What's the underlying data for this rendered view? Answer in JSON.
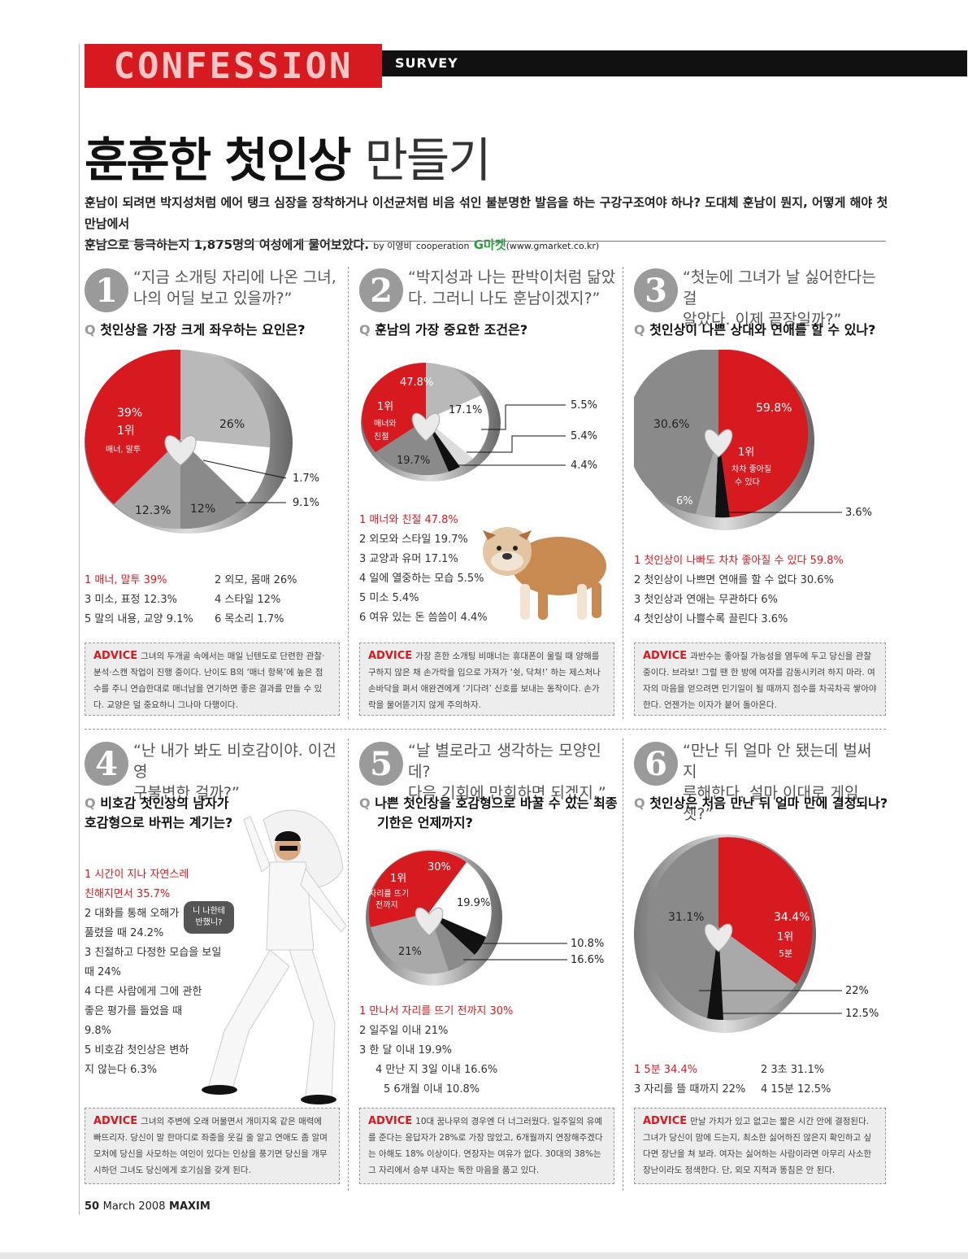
{
  "header": {
    "logo": "CONFESSION",
    "section": "SURVEY"
  },
  "title": {
    "bold": "훈훈한 첫인상",
    "light": "만들기"
  },
  "intro": {
    "line1": "훈남이 되려면 박지성처럼 에어 탱크 심장을 장착하거나 이선균처럼 비음 섞인 불분명한 발음을 하는 구강구조여야 하나? 도대체 훈남이 뭔지, 어떻게 해야 첫 만남에서",
    "line2": "훈남으로 등극하는지 1,875명의 여성에게 물어보았다.",
    "by": "by 이영비",
    "coop": "cooperation",
    "gmarket": "G마켓",
    "url": "(www.gmarket.co.kr)"
  },
  "sections": [
    {
      "num": "1",
      "quote1": "“지금 소개팅 자리에 나온 그녀,",
      "quote2": "나의 어딜 보고 있을까?”",
      "q": "첫인상을 가장 크게 좌우하는 요인은?",
      "chart_labels": {
        "a": "39%",
        "a_rank": "1위",
        "a_name": "매너, 말투",
        "b": "26%",
        "c": "12.3%",
        "d": "12%",
        "e": "1.7%",
        "f": "9.1%"
      },
      "list": [
        {
          "text": "1 매너, 말투  39%"
        },
        {
          "text": "2 외모, 몸매  26%"
        },
        {
          "text": "3 미소, 표정  12.3%"
        },
        {
          "text": "4 스타일  12%"
        },
        {
          "text": "5 말의 내용, 교양  9.1%"
        },
        {
          "text": "6 목소리  1.7%"
        }
      ],
      "advice_label": "ADVICE",
      "advice": "그녀의 두개골 속에서는 매일 닌텐도로 단련한 관찰·분석·스캔 작업이 진행 중이다. 난이도 B의 ‘매너 항목’에 높은 점수를 주니 연습한대로 매너남을 연기하면 좋은 결과를 만들 수 있다. 교양은 덜 중요하니 그나마 다행이다."
    },
    {
      "num": "2",
      "quote1": "“박지성과 나는 판박이처럼 닮았",
      "quote2": "다. 그러니 나도 훈남이겠지?”",
      "q": "훈남의 가장 중요한 조건은?",
      "chart_labels": {
        "a": "47.8%",
        "a_rank": "1위",
        "a_name1": "매너와",
        "a_name2": "친절",
        "b": "17.1%",
        "c": "19.7%",
        "d": "5.5%",
        "e": "5.4%",
        "f": "4.4%"
      },
      "list": [
        {
          "text": "1 매너와 친절  47.8%"
        },
        {
          "text": "2 외모와 스타일  19.7%"
        },
        {
          "text": "3 교양과 유머  17.1%"
        },
        {
          "text": "4 일에 열중하는 모습  5.5%"
        },
        {
          "text": "5 미소  5.4%"
        },
        {
          "text": "6 여유 있는 돈 씀씀이  4.4%"
        }
      ],
      "advice_label": "ADVICE",
      "advice": "가장 흔한 소개팅 비매너는 휴대폰이 울릴 때 양해를 구하지 않은 채 손가락을 입으로 가져가 ‘쉿, 닥쳐!’ 하는 제스처나 손바닥을 펴서 애완견에게 ‘기다려’ 신호를 보내는 동작이다. 손가락을 물어뜯기지 않게 주의하자."
    },
    {
      "num": "3",
      "quote1": "“첫눈에 그녀가 날 싫어한다는 걸",
      "quote2": "알았다. 이제 끝장일까?”",
      "q": "첫인상이 나쁜 상대와 연애를 할 수 있나?",
      "chart_labels": {
        "a": "59.8%",
        "a_rank": "1위",
        "a_name1": "차차 좋아질",
        "a_name2": "수 있다",
        "b": "30.6%",
        "c": "6%",
        "d": "3.6%"
      },
      "list": [
        {
          "text": "1 첫인상이 나빠도 차차 좋아질 수 있다  59.8%"
        },
        {
          "text": "2 첫인상이 나쁘면 연애를 할 수 없다  30.6%"
        },
        {
          "text": "3 첫인상과 연애는 무관하다  6%"
        },
        {
          "text": "4 첫인상이 나쁠수록 끌린다  3.6%"
        }
      ],
      "advice_label": "ADVICE",
      "advice": "과반수는 좋아질 가능성을 염두에 두고 당신을 관찰 중이다. 브라보! 그럴 땐 한 방에 여자를 감동시키려 하지 마라. 여자의 마음을 얻으려면 민기일이 될 때까지 점수를 차곡차곡 쌓아야 한다. 언젠가는 이자가 붙어 돌아온다."
    },
    {
      "num": "4",
      "quote1": "“난 내가 봐도 비호감이야. 이건 영",
      "quote2": "구불변한 걸까?”",
      "q1": "비호감 첫인상의 남자가",
      "q2": "호감형으로 바뀌는 계기는?",
      "bubble1": "니 나한테",
      "bubble2": "반했니?",
      "list": [
        {
          "text": "1 시간이 지나 자연스레"
        },
        {
          "text": "친해지면서  35.7%"
        },
        {
          "text": "2 대화를 통해 오해가"
        },
        {
          "text": "풀렸을 때 24.2%"
        },
        {
          "text": "3 친절하고 다정한 모습을 보일"
        },
        {
          "text": "때  24%"
        },
        {
          "text": "4 다른 사람에게 그에 관한"
        },
        {
          "text": "좋은 평가를 들었을 때"
        },
        {
          "text": "9.8%"
        },
        {
          "text": "5 비호감 첫인상은 변하"
        },
        {
          "text": "지 않는다  6.3%"
        }
      ],
      "advice_label": "ADVICE",
      "advice": "그녀의 주변에 오래 머물면서 개미지옥 같은 매력에 빠뜨리자. 당신이 말 한마디로 좌중을 웃길 줄 알고 연애도 좀 알며 모처에 당신을 사모하는 여인이 있다는 인상을 풍기면 당신을 개무시하던 그녀도 당신에게 호기심을 갖게 된다."
    },
    {
      "num": "5",
      "quote1": "“날 별로라고 생각하는 모양인데?",
      "quote2": "다음 기회에 만회하면 되겠지.”",
      "q1": "나쁜 첫인상을 호감형으로 바꿀 수 있는 최종",
      "q2": "기한은 언제까지?",
      "chart_labels": {
        "a": "30%",
        "a_rank": "1위",
        "a_name1": "자리를 뜨기",
        "a_name2": "전까지",
        "b": "19.9%",
        "c": "21%",
        "d": "10.8%",
        "e": "16.6%"
      },
      "list": [
        {
          "text": "1 만나서 자리를 뜨기 전까지  30%"
        },
        {
          "text": "2 일주일 이내  21%"
        },
        {
          "text": "3 한 달 이내  19.9%"
        },
        {
          "text": "4 만난 지 3일 이내  16.6%"
        },
        {
          "text": "5 6개월 이내  10.8%"
        }
      ],
      "advice_label": "ADVICE",
      "advice": "10대 꿈나무의 경우엔 더 너그러웠다. 일주일의 유예를 준다는 응답자가 28%로 가장 많았고, 6개월까지 연장해주겠다는 아해도 18% 이상이다. 연장자는 여유가 없다. 30대의 38%는 그 자리에서 승부 내자는 독한 마음을 품고 있다."
    },
    {
      "num": "6",
      "quote1": "“만난 뒤 얼마 안 됐는데 벌써 지",
      "quote2": "루해한다. 설마 이대로 게임 셋?”",
      "q": "첫인상은 처음 만난 뒤 얼마 만에 결정되나?",
      "chart_labels": {
        "a": "34.4%",
        "a_rank": "1위",
        "a_name": "5분",
        "b": "31.1%",
        "c": "22%",
        "d": "12.5%"
      },
      "list": [
        {
          "text": "1 5분  34.4%"
        },
        {
          "text": "2 3초  31.1%"
        },
        {
          "text": "3 자리를 뜰 때까지  22%"
        },
        {
          "text": "4 15분  12.5%"
        }
      ],
      "advice_label": "ADVICE",
      "advice": "만날 가치가 있고 없고는 짧은 시간 안에 결정된다. 그녀가 당신이 맘에 드는지, 최소한 싫어하진 않은지 확인하고 싶다면 장난을 쳐 보라. 여자는 싫어하는 사람이라면 아무리 사소한 장난이라도 정색한다. 단, 외모 지적과 똥침은 안 된다."
    }
  ],
  "qmark": "Q",
  "footer": {
    "page": "50",
    "date": "March 2008",
    "mag": "MAXIM"
  },
  "colors": {
    "red": "#d71920",
    "grey": "#9a9a9a",
    "dark": "#6e6e6e",
    "light": "#bdbdbd"
  },
  "icons": [
    "heart-icon",
    "dog-photo",
    "dancer-photo"
  ]
}
